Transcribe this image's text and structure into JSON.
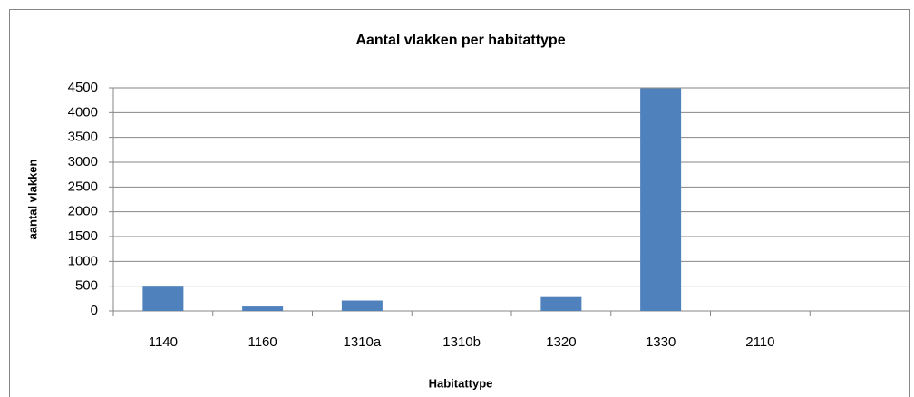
{
  "chart_data": {
    "type": "bar",
    "title": "Aantal vlakken per habitattype",
    "x_label": "Habitattype",
    "y_label": "aantal vlakken",
    "categories": [
      "1140",
      "1160",
      "1310a",
      "1310b",
      "1320",
      "1330",
      "2110",
      null
    ],
    "values": [
      490,
      90,
      210,
      0,
      280,
      4490,
      0,
      null
    ],
    "color": "#4f81bd",
    "ylim": [
      0,
      4500
    ],
    "yticks": [
      0,
      500,
      1000,
      1500,
      2000,
      2500,
      3000,
      3500,
      4000,
      4500
    ],
    "grid": true
  }
}
